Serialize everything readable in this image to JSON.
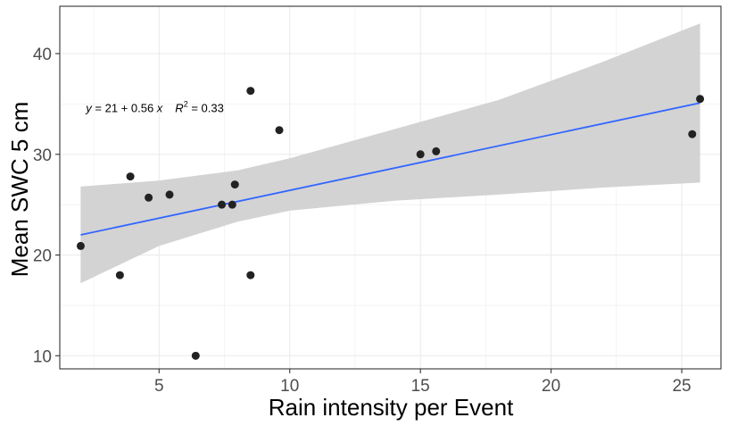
{
  "chart_data": {
    "type": "scatter",
    "xlabel": "Rain intensity per Event",
    "ylabel": "Mean SWC 5 cm",
    "xlim": [
      1.2,
      26.5
    ],
    "ylim": [
      8.7,
      44.7
    ],
    "x_ticks": [
      5,
      10,
      15,
      20,
      25
    ],
    "y_ticks": [
      10,
      20,
      30,
      40
    ],
    "grid": true,
    "points": [
      {
        "x": 2.0,
        "y": 20.9
      },
      {
        "x": 3.5,
        "y": 18.0
      },
      {
        "x": 3.9,
        "y": 27.8
      },
      {
        "x": 4.6,
        "y": 25.7
      },
      {
        "x": 5.4,
        "y": 26.0
      },
      {
        "x": 6.4,
        "y": 10.0
      },
      {
        "x": 7.4,
        "y": 25.0
      },
      {
        "x": 7.8,
        "y": 25.0
      },
      {
        "x": 7.9,
        "y": 27.0
      },
      {
        "x": 8.5,
        "y": 18.0
      },
      {
        "x": 8.5,
        "y": 36.3
      },
      {
        "x": 9.6,
        "y": 32.4
      },
      {
        "x": 15.0,
        "y": 30.0
      },
      {
        "x": 15.6,
        "y": 30.3
      },
      {
        "x": 25.4,
        "y": 32.0
      },
      {
        "x": 25.7,
        "y": 35.5
      }
    ],
    "fit": {
      "intercept": 21,
      "slope": 0.56,
      "x_range": [
        2.0,
        25.7
      ],
      "y_start": 22.0,
      "y_end": 35.1,
      "color": "#3366ff",
      "ci_band": [
        {
          "x": 2.0,
          "lower": 17.2,
          "upper": 26.8
        },
        {
          "x": 5.0,
          "lower": 20.9,
          "upper": 27.4
        },
        {
          "x": 8.0,
          "lower": 23.3,
          "upper": 28.4
        },
        {
          "x": 10.0,
          "lower": 24.4,
          "upper": 29.6
        },
        {
          "x": 14.0,
          "lower": 25.4,
          "upper": 32.5
        },
        {
          "x": 18.0,
          "lower": 26.0,
          "upper": 35.4
        },
        {
          "x": 22.0,
          "lower": 26.7,
          "upper": 39.2
        },
        {
          "x": 25.7,
          "lower": 27.2,
          "upper": 43.0
        }
      ]
    },
    "annotation": {
      "y_var": "y",
      "equation": " = 21 + 0.56 ",
      "x_var": "x",
      "r_label": "R",
      "r_sup": "2",
      "r_value": " = 0.33",
      "x": 2.2,
      "y": 34.2
    },
    "colors": {
      "point": "#222222",
      "band": "#d3d3d3",
      "grid": "#ebebeb",
      "panel_border": "#333333"
    }
  }
}
